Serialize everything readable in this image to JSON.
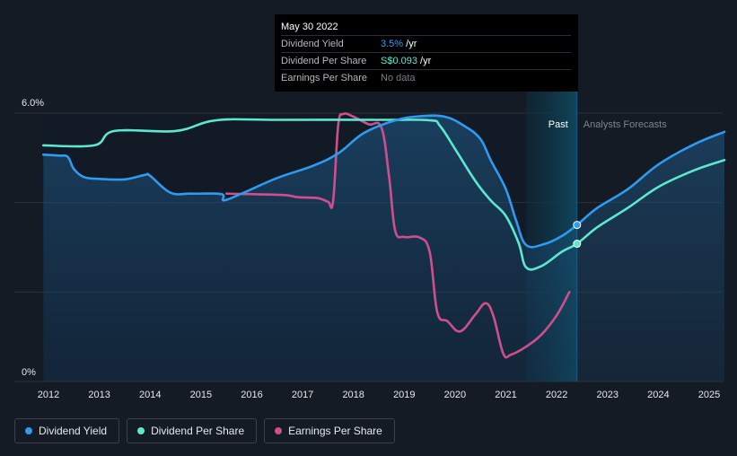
{
  "tooltip": {
    "date": "May 30 2022",
    "rows": [
      {
        "label": "Dividend Yield",
        "value": "3.5%",
        "suffix": " /yr"
      },
      {
        "label": "Dividend Per Share",
        "value": "S$0.093",
        "suffix": " /yr"
      },
      {
        "label": "Earnings Per Share",
        "value": "No data",
        "suffix": ""
      }
    ]
  },
  "legend": [
    {
      "label": "Dividend Yield",
      "color": "#2e9bf0"
    },
    {
      "label": "Dividend Per Share",
      "color": "#5ce8cf"
    },
    {
      "label": "Earnings Per Share",
      "color": "#cf4f8e"
    }
  ],
  "chart_data": {
    "type": "line",
    "y_tick_labels": [
      "6.0%",
      "0%"
    ],
    "ylim": [
      0,
      6
    ],
    "xlim": [
      2011.5,
      2025.3
    ],
    "x_ticks": [
      "2012",
      "2013",
      "2014",
      "2015",
      "2016",
      "2017",
      "2018",
      "2019",
      "2020",
      "2021",
      "2022",
      "2023",
      "2024",
      "2025"
    ],
    "grid": true,
    "past_label": "Past",
    "forecast_label": "Analysts Forecasts",
    "past_band": [
      2021.4,
      2022.4
    ],
    "marker_x": 2022.4,
    "series": [
      {
        "name": "Dividend Yield",
        "color": "#2e9bf0",
        "filled": true,
        "points": [
          [
            2011.9,
            5.07
          ],
          [
            2012.2,
            5.05
          ],
          [
            2012.38,
            5.02
          ],
          [
            2012.5,
            4.75
          ],
          [
            2012.7,
            4.57
          ],
          [
            2013.0,
            4.53
          ],
          [
            2013.5,
            4.52
          ],
          [
            2013.9,
            4.62
          ],
          [
            2014.0,
            4.6
          ],
          [
            2014.4,
            4.22
          ],
          [
            2014.8,
            4.2
          ],
          [
            2015.4,
            4.19
          ],
          [
            2015.45,
            4.05
          ],
          [
            2015.8,
            4.2
          ],
          [
            2016.5,
            4.55
          ],
          [
            2017.2,
            4.82
          ],
          [
            2017.7,
            5.1
          ],
          [
            2018.2,
            5.55
          ],
          [
            2018.8,
            5.83
          ],
          [
            2019.3,
            5.93
          ],
          [
            2019.8,
            5.92
          ],
          [
            2020.2,
            5.7
          ],
          [
            2020.5,
            5.42
          ],
          [
            2020.7,
            4.95
          ],
          [
            2021.0,
            4.3
          ],
          [
            2021.2,
            3.6
          ],
          [
            2021.4,
            3.05
          ],
          [
            2021.75,
            3.07
          ],
          [
            2022.1,
            3.25
          ],
          [
            2022.4,
            3.5
          ],
          [
            2022.8,
            3.88
          ],
          [
            2023.4,
            4.3
          ],
          [
            2024.0,
            4.85
          ],
          [
            2024.7,
            5.3
          ],
          [
            2025.3,
            5.58
          ]
        ]
      },
      {
        "name": "Dividend Per Share",
        "color": "#5ce8cf",
        "filled": false,
        "points": [
          [
            2011.9,
            5.28
          ],
          [
            2012.9,
            5.28
          ],
          [
            2013.3,
            5.6
          ],
          [
            2014.5,
            5.6
          ],
          [
            2015.3,
            5.84
          ],
          [
            2016.5,
            5.85
          ],
          [
            2018.5,
            5.85
          ],
          [
            2019.5,
            5.84
          ],
          [
            2019.7,
            5.72
          ],
          [
            2020.0,
            5.2
          ],
          [
            2020.4,
            4.48
          ],
          [
            2020.7,
            4.05
          ],
          [
            2021.0,
            3.7
          ],
          [
            2021.25,
            3.1
          ],
          [
            2021.4,
            2.55
          ],
          [
            2021.7,
            2.58
          ],
          [
            2022.1,
            2.9
          ],
          [
            2022.4,
            3.08
          ],
          [
            2022.8,
            3.45
          ],
          [
            2023.4,
            3.88
          ],
          [
            2024.0,
            4.35
          ],
          [
            2024.7,
            4.72
          ],
          [
            2025.3,
            4.95
          ]
        ]
      },
      {
        "name": "Earnings Per Share",
        "color": "#cf4f8e",
        "filled": false,
        "points": [
          [
            2015.5,
            4.2
          ],
          [
            2016.6,
            4.17
          ],
          [
            2016.9,
            4.12
          ],
          [
            2017.3,
            4.1
          ],
          [
            2017.5,
            4.02
          ],
          [
            2017.6,
            4.02
          ],
          [
            2017.7,
            5.72
          ],
          [
            2017.8,
            5.98
          ],
          [
            2018.0,
            5.92
          ],
          [
            2018.3,
            5.75
          ],
          [
            2018.55,
            5.68
          ],
          [
            2018.7,
            4.6
          ],
          [
            2018.82,
            3.38
          ],
          [
            2019.0,
            3.23
          ],
          [
            2019.3,
            3.22
          ],
          [
            2019.5,
            2.9
          ],
          [
            2019.65,
            1.55
          ],
          [
            2019.85,
            1.35
          ],
          [
            2020.1,
            1.12
          ],
          [
            2020.4,
            1.5
          ],
          [
            2020.6,
            1.75
          ],
          [
            2020.75,
            1.48
          ],
          [
            2020.95,
            0.62
          ],
          [
            2021.1,
            0.6
          ],
          [
            2021.4,
            0.78
          ],
          [
            2021.7,
            1.05
          ],
          [
            2022.0,
            1.48
          ],
          [
            2022.25,
            2.0
          ]
        ]
      }
    ]
  }
}
